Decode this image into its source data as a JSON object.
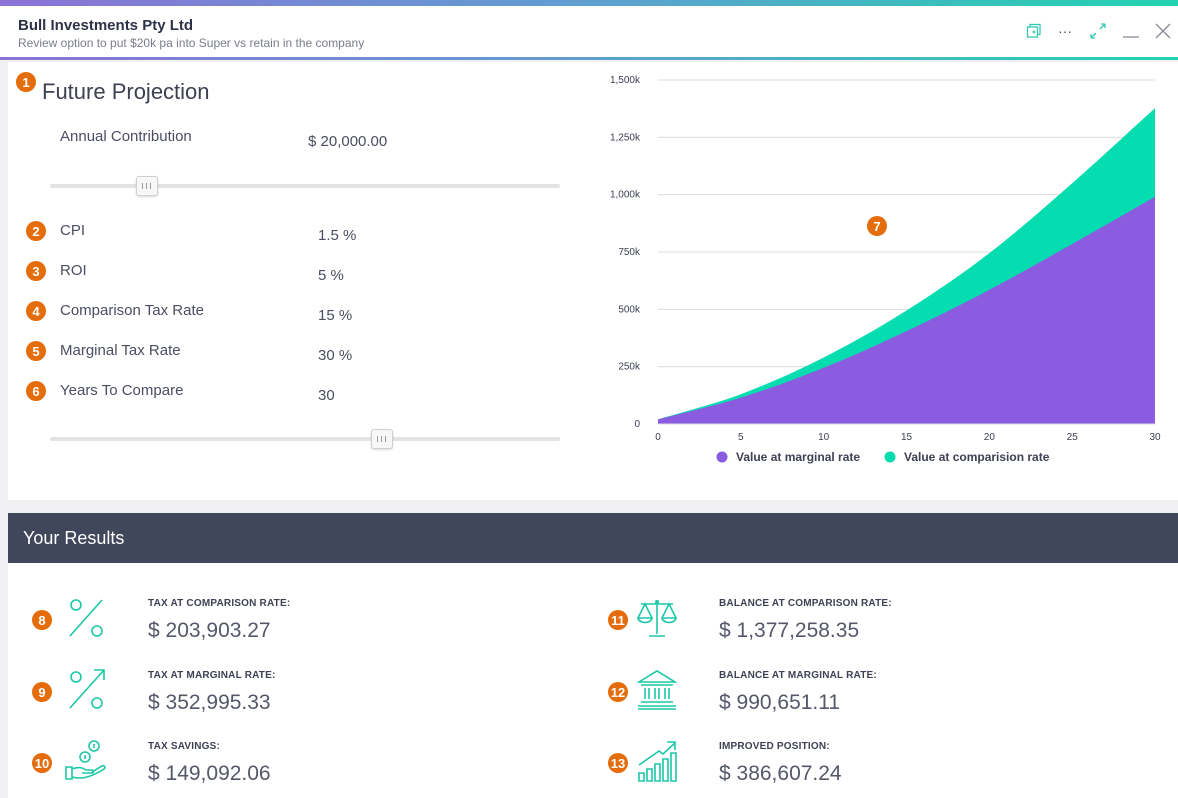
{
  "window": {
    "title": "Bull Investments Pty Ltd",
    "subtitle": "Review option to put $20k pa into Super vs retain in the company",
    "controls": [
      "copy-icon",
      "more-icon",
      "expand-icon",
      "minimize-icon",
      "close-icon"
    ],
    "more_label": "···"
  },
  "projection": {
    "badge": "1",
    "title": "Future Projection",
    "annual_contribution": {
      "label": "Annual Contribution",
      "value": "$ 20,000.00",
      "slider_level": 0.19
    },
    "fields": [
      {
        "badge": "2",
        "label": "CPI",
        "value": "1.5 %"
      },
      {
        "badge": "3",
        "label": "ROI",
        "value": "5 %"
      },
      {
        "badge": "4",
        "label": "Comparison Tax Rate",
        "value": "15 %"
      },
      {
        "badge": "5",
        "label": "Marginal Tax Rate",
        "value": "30 %"
      },
      {
        "badge": "6",
        "label": "Years To Compare",
        "value": "30"
      }
    ],
    "years_slider_level": 0.65
  },
  "chart_badge": "7",
  "chart_data": {
    "type": "area",
    "x": [
      0,
      5,
      10,
      15,
      20,
      25,
      30
    ],
    "xticks": [
      "0",
      "5",
      "10",
      "15",
      "20",
      "25",
      "30"
    ],
    "yticks": [
      "0",
      "250k",
      "500k",
      "750k",
      "1,000k",
      "1,250k",
      "1,500k"
    ],
    "ylim": [
      0,
      1500000
    ],
    "xlim": [
      0,
      30
    ],
    "series": [
      {
        "name": "Value at marginal rate",
        "color": "#8c5ce0",
        "values": [
          20000,
          115000,
          245000,
          405000,
          585000,
          785000,
          990651
        ]
      },
      {
        "name": "Value at comparision rate",
        "color": "#05dcb0",
        "values": [
          20000,
          130000,
          290000,
          495000,
          745000,
          1050000,
          1377258
        ]
      }
    ],
    "legend": "bottom",
    "grid": true
  },
  "results": {
    "title": "Your Results",
    "items": [
      {
        "badge": "8",
        "icon": "percent-icon",
        "label": "TAX AT COMPARISON RATE:",
        "value": "$ 203,903.27"
      },
      {
        "badge": "9",
        "icon": "percent-up-icon",
        "label": "TAX AT MARGINAL RATE:",
        "value": "$ 352,995.33"
      },
      {
        "badge": "10",
        "icon": "hand-coins-icon",
        "label": "TAX SAVINGS:",
        "value": "$ 149,092.06"
      },
      {
        "badge": "11",
        "icon": "scales-icon",
        "label": "BALANCE AT COMPARISON RATE:",
        "value": "$ 1,377,258.35"
      },
      {
        "badge": "12",
        "icon": "bank-icon",
        "label": "BALANCE AT MARGINAL RATE:",
        "value": "$ 990,651.11"
      },
      {
        "badge": "13",
        "icon": "growth-chart-icon",
        "label": "IMPROVED POSITION:",
        "value": "$ 386,607.24"
      }
    ]
  }
}
